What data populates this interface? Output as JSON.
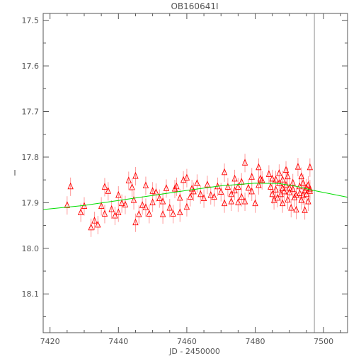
{
  "chart_data": {
    "type": "scatter",
    "title": "OB160641I",
    "xlabel": "JD - 2450000",
    "ylabel": "I",
    "xlim": [
      7418,
      7507
    ],
    "ylim": [
      18.185,
      17.485
    ],
    "y_inverted": true,
    "grid": false,
    "x_ticks": [
      7420,
      7440,
      7460,
      7480,
      7500
    ],
    "y_ticks": [
      17.5,
      17.6,
      17.7,
      17.8,
      17.9,
      18.0,
      18.1
    ],
    "x_tick_labels": [
      "7420",
      "7440",
      "7460",
      "7480",
      "7500"
    ],
    "y_tick_labels": [
      "17.5",
      "17.6",
      "17.7",
      "17.8",
      "17.9",
      "18.0",
      "18.1"
    ],
    "vertical_line_x": 7497.3,
    "series": [
      {
        "kind": "observations",
        "marker": "open-triangle",
        "color": "#ff0000",
        "error_bar_color": "#ff9999",
        "points": [
          [
            7425.0,
            17.906
          ],
          [
            7426.0,
            17.865
          ],
          [
            7429.0,
            17.922
          ],
          [
            7430.0,
            17.908
          ],
          [
            7432.0,
            17.955
          ],
          [
            7433.0,
            17.94
          ],
          [
            7434.0,
            17.949
          ],
          [
            7435.0,
            17.908
          ],
          [
            7436.0,
            17.866
          ],
          [
            7436.0,
            17.925
          ],
          [
            7437.0,
            17.875
          ],
          [
            7438.0,
            17.915
          ],
          [
            7439.0,
            17.929
          ],
          [
            7440.0,
            17.884
          ],
          [
            7440.0,
            17.922
          ],
          [
            7441.0,
            17.902
          ],
          [
            7442.0,
            17.905
          ],
          [
            7443.0,
            17.852
          ],
          [
            7444.0,
            17.867
          ],
          [
            7444.5,
            17.895
          ],
          [
            7445.0,
            17.842
          ],
          [
            7445.0,
            17.944
          ],
          [
            7446.0,
            17.926
          ],
          [
            7447.0,
            17.906
          ],
          [
            7448.0,
            17.863
          ],
          [
            7448.0,
            17.911
          ],
          [
            7449.0,
            17.925
          ],
          [
            7450.0,
            17.875
          ],
          [
            7450.0,
            17.9
          ],
          [
            7451.0,
            17.878
          ],
          [
            7452.0,
            17.891
          ],
          [
            7453.0,
            17.898
          ],
          [
            7453.0,
            17.926
          ],
          [
            7454.0,
            17.869
          ],
          [
            7455.0,
            17.912
          ],
          [
            7456.0,
            17.925
          ],
          [
            7456.5,
            17.87
          ],
          [
            7457.0,
            17.865
          ],
          [
            7458.0,
            17.89
          ],
          [
            7458.0,
            17.922
          ],
          [
            7459.0,
            17.851
          ],
          [
            7460.0,
            17.846
          ],
          [
            7460.0,
            17.91
          ],
          [
            7461.0,
            17.888
          ],
          [
            7461.5,
            17.87
          ],
          [
            7462.0,
            17.876
          ],
          [
            7463.0,
            17.858
          ],
          [
            7464.0,
            17.882
          ],
          [
            7465.0,
            17.891
          ],
          [
            7466.0,
            17.861
          ],
          [
            7467.0,
            17.884
          ],
          [
            7468.0,
            17.888
          ],
          [
            7469.0,
            17.865
          ],
          [
            7470.0,
            17.877
          ],
          [
            7471.0,
            17.834
          ],
          [
            7471.0,
            17.902
          ],
          [
            7472.0,
            17.866
          ],
          [
            7473.0,
            17.882
          ],
          [
            7473.0,
            17.898
          ],
          [
            7474.0,
            17.848
          ],
          [
            7474.0,
            17.874
          ],
          [
            7475.0,
            17.9
          ],
          [
            7475.0,
            17.866
          ],
          [
            7476.0,
            17.855
          ],
          [
            7476.0,
            17.888
          ],
          [
            7477.0,
            17.813
          ],
          [
            7477.0,
            17.898
          ],
          [
            7478.0,
            17.868
          ],
          [
            7479.0,
            17.844
          ],
          [
            7479.0,
            17.876
          ],
          [
            7480.0,
            17.902
          ],
          [
            7481.0,
            17.823
          ],
          [
            7481.0,
            17.862
          ],
          [
            7481.5,
            17.848
          ],
          [
            7482.0,
            17.851
          ],
          [
            7484.0,
            17.838
          ],
          [
            7484.5,
            17.866
          ],
          [
            7485.0,
            17.882
          ],
          [
            7485.0,
            17.848
          ],
          [
            7485.5,
            17.895
          ],
          [
            7486.0,
            17.85
          ],
          [
            7486.0,
            17.872
          ],
          [
            7486.5,
            17.89
          ],
          [
            7487.0,
            17.858
          ],
          [
            7487.0,
            17.836
          ],
          [
            7487.5,
            17.882
          ],
          [
            7488.0,
            17.85
          ],
          [
            7488.0,
            17.869
          ],
          [
            7488.0,
            17.902
          ],
          [
            7488.5,
            17.876
          ],
          [
            7489.0,
            17.829
          ],
          [
            7489.0,
            17.862
          ],
          [
            7489.5,
            17.894
          ],
          [
            7489.5,
            17.843
          ],
          [
            7490.0,
            17.868
          ],
          [
            7490.0,
            17.878
          ],
          [
            7490.5,
            17.912
          ],
          [
            7491.0,
            17.857
          ],
          [
            7491.0,
            17.871
          ],
          [
            7491.5,
            17.889
          ],
          [
            7492.0,
            17.884
          ],
          [
            7492.0,
            17.916
          ],
          [
            7492.5,
            17.822
          ],
          [
            7493.0,
            17.865
          ],
          [
            7493.0,
            17.88
          ],
          [
            7493.5,
            17.895
          ],
          [
            7493.5,
            17.843
          ],
          [
            7494.0,
            17.858
          ],
          [
            7494.0,
            17.884
          ],
          [
            7494.5,
            17.874
          ],
          [
            7494.5,
            17.917
          ],
          [
            7495.0,
            17.868
          ],
          [
            7495.0,
            17.882
          ],
          [
            7495.5,
            17.862
          ],
          [
            7495.5,
            17.898
          ],
          [
            7496.0,
            17.823
          ],
          [
            7496.0,
            17.875
          ],
          [
            7496.0,
            17.87
          ]
        ]
      },
      {
        "kind": "model-fit",
        "marker": "line",
        "color": "#00dd00",
        "points": [
          [
            7418,
            17.915
          ],
          [
            7430,
            17.906
          ],
          [
            7440,
            17.895
          ],
          [
            7450,
            17.884
          ],
          [
            7460,
            17.873
          ],
          [
            7470,
            17.863
          ],
          [
            7480,
            17.857
          ],
          [
            7487,
            17.858
          ],
          [
            7492,
            17.864
          ],
          [
            7497,
            17.873
          ],
          [
            7507,
            17.888
          ]
        ]
      }
    ]
  },
  "colors": {
    "axis": "#555555",
    "markers": "#ff0000",
    "error_bars": "#ff9999",
    "fit_line": "#00dd00",
    "vertical_line": "#999999"
  }
}
